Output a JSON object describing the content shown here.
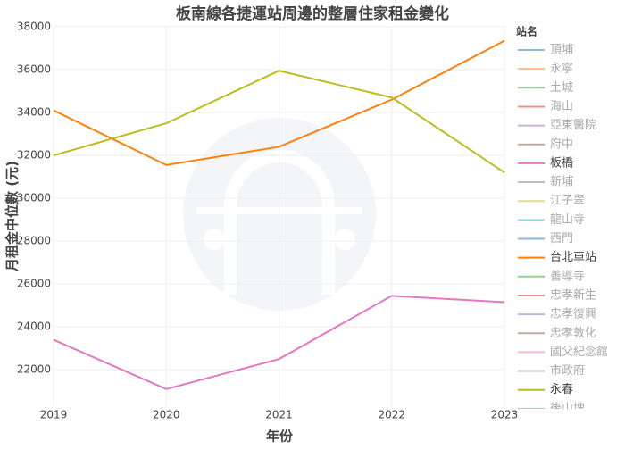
{
  "chart_data": {
    "type": "line",
    "title": "板南線各捷運站周邊的整層住家租金變化",
    "x_label": "年份",
    "y_label": "月租金中位數 (元)",
    "legend_title": "站名",
    "x": [
      2019,
      2020,
      2021,
      2022,
      2023
    ],
    "xlim": [
      2019,
      2023
    ],
    "xticks": [
      2019,
      2020,
      2021,
      2022,
      2023
    ],
    "ylim": [
      20300,
      38000
    ],
    "yticks": [
      22000,
      24000,
      26000,
      28000,
      30000,
      32000,
      34000,
      36000,
      38000
    ],
    "grid": true,
    "legend": "right",
    "series": [
      {
        "name": "頂埔",
        "color": "#1f77b4",
        "visible": "legendonly",
        "values": [
          null,
          null,
          null,
          null,
          null
        ]
      },
      {
        "name": "永寧",
        "color": "#ff7f0e",
        "visible": "legendonly",
        "values": [
          null,
          null,
          null,
          null,
          null
        ]
      },
      {
        "name": "土城",
        "color": "#2ca02c",
        "visible": "legendonly",
        "values": [
          null,
          null,
          null,
          null,
          null
        ]
      },
      {
        "name": "海山",
        "color": "#d62728",
        "visible": "legendonly",
        "values": [
          null,
          null,
          null,
          null,
          null
        ]
      },
      {
        "name": "亞東醫院",
        "color": "#9467bd",
        "visible": "legendonly",
        "values": [
          null,
          null,
          null,
          null,
          null
        ]
      },
      {
        "name": "府中",
        "color": "#8c564b",
        "visible": "legendonly",
        "values": [
          null,
          null,
          null,
          null,
          null
        ]
      },
      {
        "name": "板橋",
        "color": "#e377c2",
        "visible": true,
        "values": [
          23400,
          21100,
          22500,
          25450,
          25150
        ]
      },
      {
        "name": "新埔",
        "color": "#7f7f7f",
        "visible": "legendonly",
        "values": [
          null,
          null,
          null,
          null,
          null
        ]
      },
      {
        "name": "江子翠",
        "color": "#bcbd22",
        "visible": "legendonly",
        "values": [
          null,
          null,
          null,
          null,
          null
        ]
      },
      {
        "name": "龍山寺",
        "color": "#17becf",
        "visible": "legendonly",
        "values": [
          null,
          null,
          null,
          null,
          null
        ]
      },
      {
        "name": "西門",
        "color": "#1f77b4",
        "visible": "legendonly",
        "values": [
          null,
          null,
          null,
          null,
          null
        ]
      },
      {
        "name": "台北車站",
        "color": "#ff7f0e",
        "visible": true,
        "values": [
          34100,
          31550,
          32400,
          34600,
          37350
        ]
      },
      {
        "name": "善導寺",
        "color": "#2ca02c",
        "visible": "legendonly",
        "values": [
          null,
          null,
          null,
          null,
          null
        ]
      },
      {
        "name": "忠孝新生",
        "color": "#d62728",
        "visible": "legendonly",
        "values": [
          null,
          null,
          null,
          null,
          null
        ]
      },
      {
        "name": "忠孝復興",
        "color": "#9467bd",
        "visible": "legendonly",
        "values": [
          null,
          null,
          null,
          null,
          null
        ]
      },
      {
        "name": "忠孝敦化",
        "color": "#8c564b",
        "visible": "legendonly",
        "values": [
          null,
          null,
          null,
          null,
          null
        ]
      },
      {
        "name": "國父紀念館",
        "color": "#e377c2",
        "visible": "legendonly",
        "values": [
          null,
          null,
          null,
          null,
          null
        ]
      },
      {
        "name": "市政府",
        "color": "#7f7f7f",
        "visible": "legendonly",
        "values": [
          null,
          null,
          null,
          null,
          null
        ]
      },
      {
        "name": "永春",
        "color": "#bcbd22",
        "visible": true,
        "values": [
          32000,
          33500,
          35950,
          34700,
          31200
        ]
      },
      {
        "name": "後山埤",
        "color": "#17becf",
        "visible": "legendonly",
        "values": [
          null,
          null,
          null,
          null,
          null
        ]
      }
    ]
  }
}
